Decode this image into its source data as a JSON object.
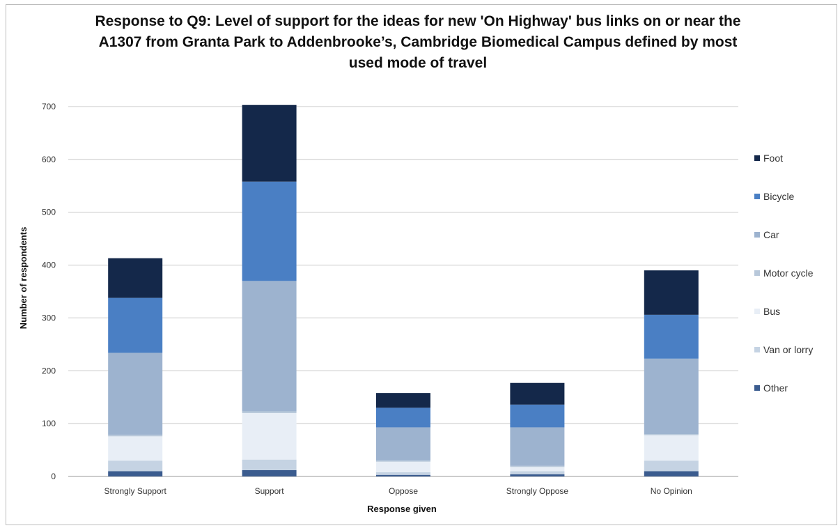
{
  "chart_data": {
    "type": "bar",
    "stacked": true,
    "title": "Response to Q9: Level of support for the ideas for new 'On Highway' bus links on or near the A1307 from Granta Park to Addenbrooke’s, Cambridge Biomedical Campus defined by most used mode of travel",
    "xlabel": "Response given",
    "ylabel": "Number of respondents",
    "ylim": [
      0,
      700
    ],
    "yticks": [
      0,
      100,
      200,
      300,
      400,
      500,
      600,
      700
    ],
    "grid": true,
    "legend_position": "right",
    "categories": [
      "Strongly Support",
      "Support",
      "Oppose",
      "Strongly Oppose",
      "No Opinion"
    ],
    "series": [
      {
        "name": "Other",
        "color": "#3b5c8f",
        "values": [
          10,
          12,
          3,
          4,
          10
        ]
      },
      {
        "name": "Van or lorry",
        "color": "#c5d3e3",
        "values": [
          20,
          20,
          5,
          6,
          20
        ]
      },
      {
        "name": "Bus",
        "color": "#e8eef6",
        "values": [
          46,
          88,
          20,
          8,
          48
        ]
      },
      {
        "name": "Motor cycle",
        "color": "#b8c8da",
        "values": [
          3,
          3,
          2,
          2,
          2
        ]
      },
      {
        "name": "Car",
        "color": "#9db3cf",
        "values": [
          155,
          247,
          63,
          73,
          143
        ]
      },
      {
        "name": "Bicycle",
        "color": "#4a7fc4",
        "values": [
          104,
          188,
          37,
          43,
          83
        ]
      },
      {
        "name": "Foot",
        "color": "#14284a",
        "values": [
          75,
          145,
          28,
          41,
          84
        ]
      }
    ],
    "legend_order": [
      "Foot",
      "Bicycle",
      "Car",
      "Motor cycle",
      "Bus",
      "Van or lorry",
      "Other"
    ]
  }
}
